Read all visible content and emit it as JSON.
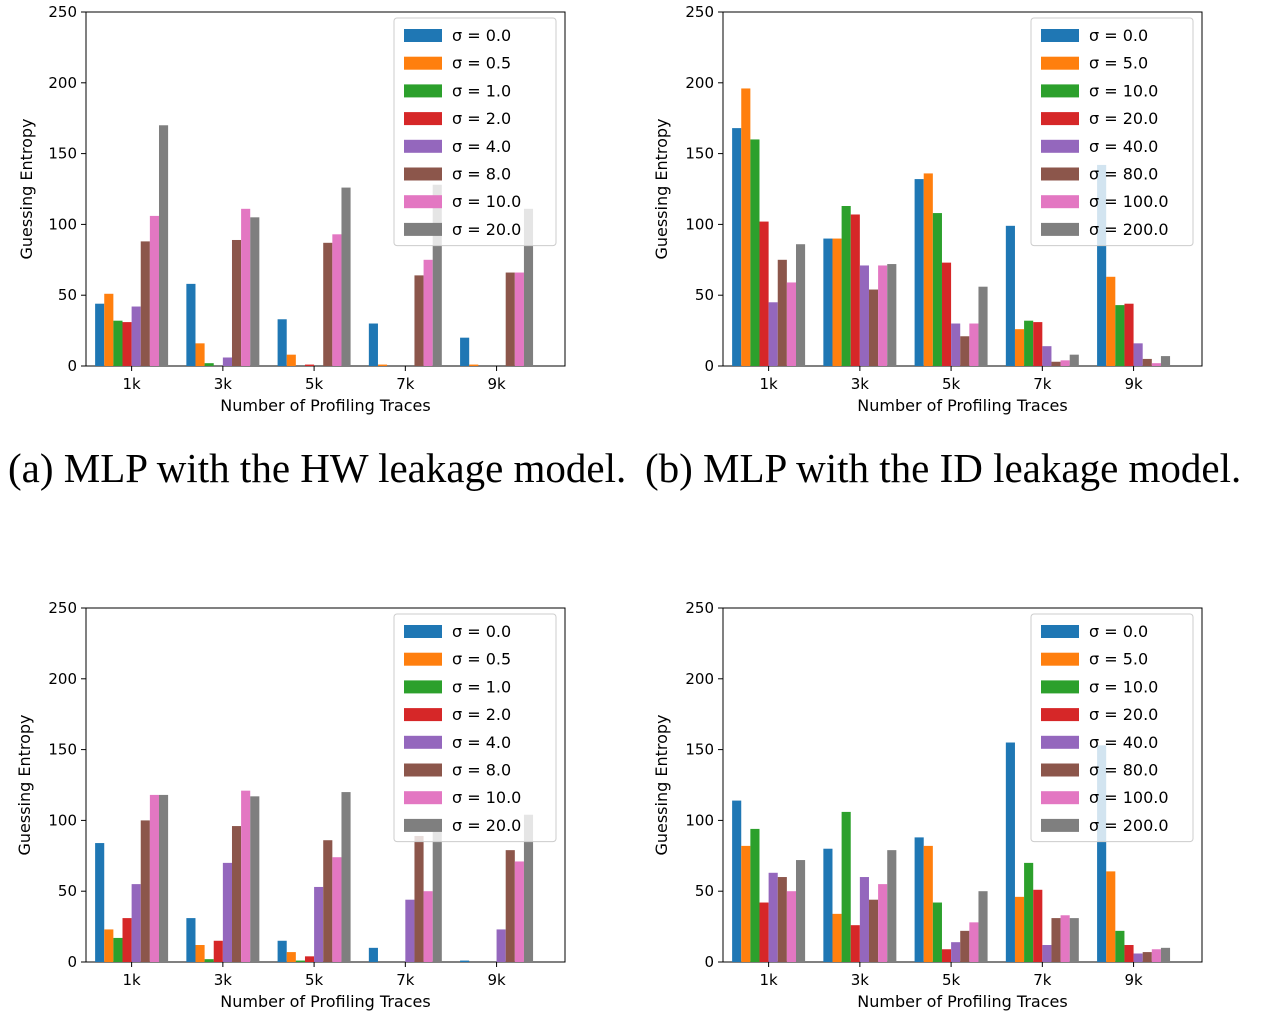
{
  "chart_data": [
    {
      "type": "bar",
      "categories": [
        "1k",
        "3k",
        "5k",
        "7k",
        "9k"
      ],
      "xlabel": "Number of Profiling Traces",
      "ylabel": "Guessing Entropy",
      "ylim": [
        0,
        250
      ],
      "yticks": [
        0,
        50,
        100,
        150,
        200,
        250
      ],
      "legend_position": "upper right",
      "series": [
        {
          "name": "σ = 0.0",
          "values": [
            44,
            58,
            33,
            30,
            20
          ]
        },
        {
          "name": "σ = 0.5",
          "values": [
            51,
            16,
            8,
            1,
            1
          ]
        },
        {
          "name": "σ = 1.0",
          "values": [
            32,
            2,
            0,
            0,
            0
          ]
        },
        {
          "name": "σ = 2.0",
          "values": [
            31,
            0,
            1,
            0,
            0
          ]
        },
        {
          "name": "σ = 4.0",
          "values": [
            42,
            6,
            0,
            0,
            0
          ]
        },
        {
          "name": "σ = 8.0",
          "values": [
            88,
            89,
            87,
            64,
            66
          ]
        },
        {
          "name": "σ = 10.0",
          "values": [
            106,
            111,
            93,
            75,
            66
          ]
        },
        {
          "name": "σ = 20.0",
          "values": [
            170,
            105,
            126,
            128,
            111
          ]
        }
      ]
    },
    {
      "type": "bar",
      "categories": [
        "1k",
        "3k",
        "5k",
        "7k",
        "9k"
      ],
      "xlabel": "Number of Profiling Traces",
      "ylabel": "Guessing Entropy",
      "ylim": [
        0,
        250
      ],
      "yticks": [
        0,
        50,
        100,
        150,
        200,
        250
      ],
      "legend_position": "upper right",
      "series": [
        {
          "name": "σ = 0.0",
          "values": [
            168,
            90,
            132,
            99,
            142
          ]
        },
        {
          "name": "σ = 5.0",
          "values": [
            196,
            90,
            136,
            26,
            63
          ]
        },
        {
          "name": "σ = 10.0",
          "values": [
            160,
            113,
            108,
            32,
            43
          ]
        },
        {
          "name": "σ = 20.0",
          "values": [
            102,
            107,
            73,
            31,
            44
          ]
        },
        {
          "name": "σ = 40.0",
          "values": [
            45,
            71,
            30,
            14,
            16
          ]
        },
        {
          "name": "σ = 80.0",
          "values": [
            75,
            54,
            21,
            3,
            5
          ]
        },
        {
          "name": "σ = 100.0",
          "values": [
            59,
            71,
            30,
            4,
            2
          ]
        },
        {
          "name": "σ = 200.0",
          "values": [
            86,
            72,
            56,
            8,
            7
          ]
        }
      ]
    },
    {
      "type": "bar",
      "categories": [
        "1k",
        "3k",
        "5k",
        "7k",
        "9k"
      ],
      "xlabel": "Number of Profiling Traces",
      "ylabel": "Guessing Entropy",
      "ylim": [
        0,
        250
      ],
      "yticks": [
        0,
        50,
        100,
        150,
        200,
        250
      ],
      "legend_position": "upper right",
      "series": [
        {
          "name": "σ = 0.0",
          "values": [
            84,
            31,
            15,
            10,
            1
          ]
        },
        {
          "name": "σ = 0.5",
          "values": [
            23,
            12,
            7,
            0,
            0
          ]
        },
        {
          "name": "σ = 1.0",
          "values": [
            17,
            2,
            1,
            0,
            0
          ]
        },
        {
          "name": "σ = 2.0",
          "values": [
            31,
            15,
            4,
            0,
            0
          ]
        },
        {
          "name": "σ = 4.0",
          "values": [
            55,
            70,
            53,
            44,
            23
          ]
        },
        {
          "name": "σ = 8.0",
          "values": [
            100,
            96,
            86,
            89,
            79
          ]
        },
        {
          "name": "σ = 10.0",
          "values": [
            118,
            121,
            74,
            50,
            71
          ]
        },
        {
          "name": "σ = 20.0",
          "values": [
            118,
            117,
            120,
            96,
            104
          ]
        }
      ]
    },
    {
      "type": "bar",
      "categories": [
        "1k",
        "3k",
        "5k",
        "7k",
        "9k"
      ],
      "xlabel": "Number of Profiling Traces",
      "ylabel": "Guessing Entropy",
      "ylim": [
        0,
        250
      ],
      "yticks": [
        0,
        50,
        100,
        150,
        200,
        250
      ],
      "legend_position": "upper right",
      "series": [
        {
          "name": "σ = 0.0",
          "values": [
            114,
            80,
            88,
            155,
            153
          ]
        },
        {
          "name": "σ = 5.0",
          "values": [
            82,
            34,
            82,
            46,
            64
          ]
        },
        {
          "name": "σ = 10.0",
          "values": [
            94,
            106,
            42,
            70,
            22
          ]
        },
        {
          "name": "σ = 20.0",
          "values": [
            42,
            26,
            9,
            51,
            12
          ]
        },
        {
          "name": "σ = 40.0",
          "values": [
            63,
            60,
            14,
            12,
            6
          ]
        },
        {
          "name": "σ = 80.0",
          "values": [
            60,
            44,
            22,
            31,
            7
          ]
        },
        {
          "name": "σ = 100.0",
          "values": [
            50,
            55,
            28,
            33,
            9
          ]
        },
        {
          "name": "σ = 200.0",
          "values": [
            72,
            79,
            50,
            31,
            10
          ]
        }
      ]
    }
  ],
  "colors": [
    "#1f77b4",
    "#ff7f0e",
    "#2ca02c",
    "#d62728",
    "#9467bd",
    "#8c564b",
    "#e377c2",
    "#7f7f7f"
  ],
  "captions": {
    "a": "(a) MLP with the HW leakage model.",
    "b": "(b) MLP with the ID leakage model."
  }
}
